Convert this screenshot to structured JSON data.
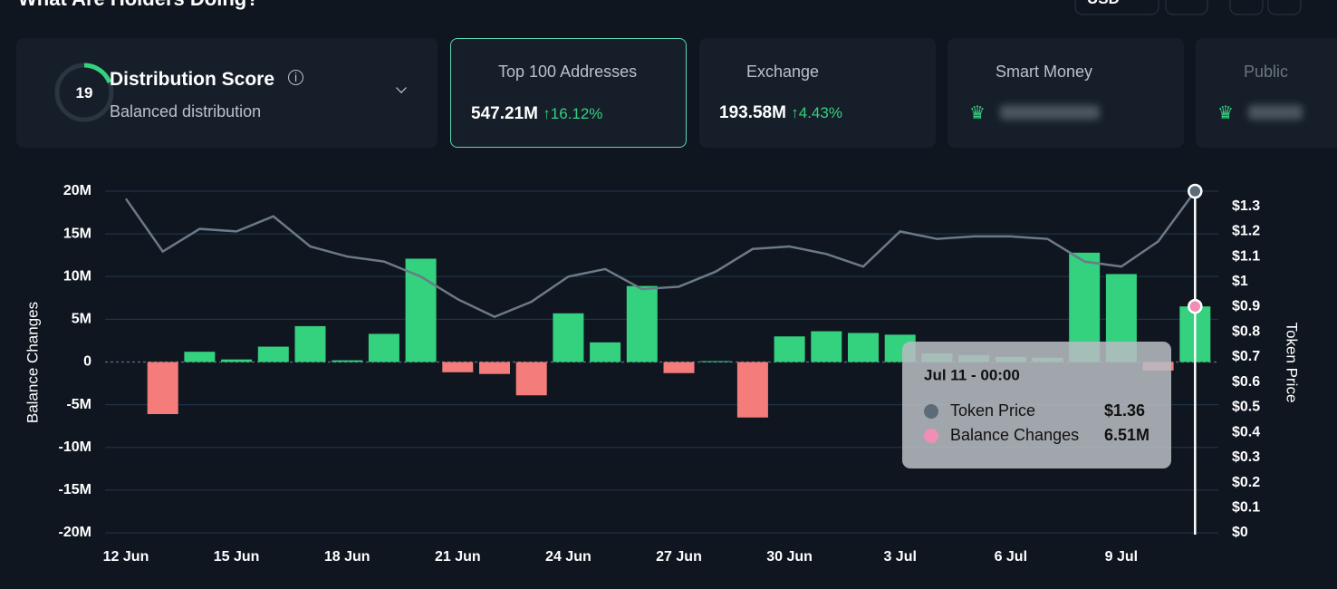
{
  "header": {
    "title": "What Are Holders Doing?",
    "currency": "USD"
  },
  "cards": {
    "distribution": {
      "score": 19,
      "title": "Distribution Score",
      "subtitle": "Balanced distribution"
    },
    "top100": {
      "title": "Top 100 Addresses",
      "value": "547.21M",
      "change": "16.12%"
    },
    "exchange": {
      "title": "Exchange",
      "value": "193.58M",
      "change": "4.43%"
    },
    "smart_money": {
      "title": "Smart Money"
    },
    "public": {
      "title": "Public"
    }
  },
  "chart_data": {
    "type": "bar-line",
    "categories": [
      "12 Jun",
      null,
      null,
      "15 Jun",
      null,
      null,
      "18 Jun",
      null,
      null,
      "21 Jun",
      null,
      null,
      "24 Jun",
      null,
      null,
      "27 Jun",
      null,
      null,
      "30 Jun",
      null,
      null,
      "3 Jul",
      null,
      null,
      "6 Jul",
      null,
      null,
      "9 Jul",
      null,
      null
    ],
    "series": [
      {
        "name": "Balance Changes",
        "type": "bar",
        "color": "#34d17f",
        "negative_color": "#f47c7a",
        "values": [
          0,
          -6.1,
          1.2,
          0.3,
          1.8,
          4.2,
          0.2,
          3.3,
          12.1,
          -1.2,
          -1.4,
          -3.9,
          5.7,
          2.3,
          8.9,
          -1.3,
          0.1,
          -6.5,
          3.0,
          3.6,
          3.4,
          3.2,
          1.0,
          0.8,
          0.6,
          0.5,
          12.8,
          10.3,
          -1.0,
          6.51
        ]
      },
      {
        "name": "Token Price",
        "type": "line",
        "axis": "y2",
        "color": "#6b7a86",
        "values": [
          1.33,
          1.12,
          1.21,
          1.2,
          1.26,
          1.14,
          1.1,
          1.08,
          1.02,
          0.93,
          0.86,
          0.92,
          1.02,
          1.05,
          0.97,
          0.98,
          1.04,
          1.13,
          1.14,
          1.11,
          1.06,
          1.2,
          1.17,
          1.18,
          1.18,
          1.17,
          1.08,
          1.06,
          1.16,
          1.36
        ]
      }
    ],
    "ylabel": "Balance Changes",
    "y2label": "Token Price",
    "ylim": [
      -20,
      20
    ],
    "yticks": [
      {
        "value": -20,
        "label": "-20M"
      },
      {
        "value": -15,
        "label": "-15M"
      },
      {
        "value": -10,
        "label": "-10M"
      },
      {
        "value": -5,
        "label": "-5M"
      },
      0,
      {
        "value": 5,
        "label": "5M"
      },
      {
        "value": 10,
        "label": "10M"
      },
      {
        "value": 15,
        "label": "15M"
      },
      {
        "value": 20,
        "label": "20M"
      }
    ],
    "y2lim": [
      0,
      1.36
    ],
    "y2ticks": [
      {
        "value": 0,
        "label": "$0"
      },
      {
        "value": 0.1,
        "label": "$0.1"
      },
      {
        "value": 0.2,
        "label": "$0.2"
      },
      {
        "value": 0.3,
        "label": "$0.3"
      },
      {
        "value": 0.4,
        "label": "$0.4"
      },
      {
        "value": 0.5,
        "label": "$0.5"
      },
      {
        "value": 0.6,
        "label": "$0.6"
      },
      {
        "value": 0.7,
        "label": "$0.7"
      },
      {
        "value": 0.8,
        "label": "$0.8"
      },
      {
        "value": 0.9,
        "label": "$0.9"
      },
      {
        "value": 1,
        "label": "$1"
      },
      {
        "value": 1.1,
        "label": "$1.1"
      },
      {
        "value": 1.2,
        "label": "$1.2"
      },
      {
        "value": 1.3,
        "label": "$1.3"
      }
    ],
    "grid": true,
    "tooltip": {
      "title": "Jul 11 - 00:00",
      "index": 29,
      "price_label": "$1.36",
      "balance_label": "6.51M"
    }
  }
}
